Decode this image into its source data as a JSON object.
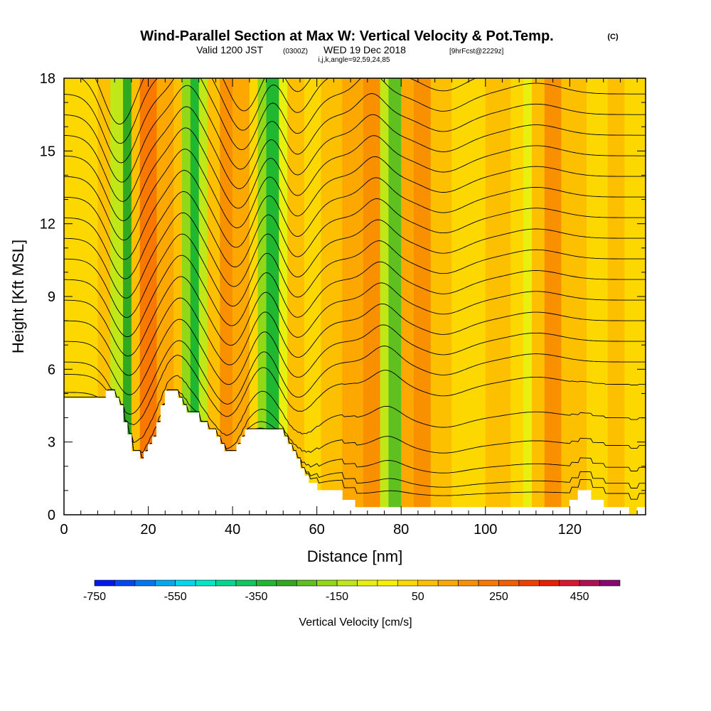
{
  "chart_data": {
    "type": "heatmap",
    "title": "Wind-Parallel Section at Max W: Vertical Velocity & Pot.Temp.",
    "title_mark": "(C)",
    "subtitle": {
      "prefix": "Valid 1200 JST",
      "zulu": "(0300Z)",
      "date": "WED 19 Dec 2018",
      "forecast": "[9hrFcst@2229z]"
    },
    "section_info": "i,j,k,angle=92,59,24,85",
    "xlabel": "Distance [nm]",
    "ylabel": "Height [Kft MSL]",
    "xlim": [
      0,
      138
    ],
    "ylim": [
      0,
      18
    ],
    "x_ticks": [
      0,
      20,
      40,
      60,
      80,
      100,
      120
    ],
    "y_ticks": [
      0,
      3,
      6,
      9,
      12,
      15,
      18
    ],
    "terrain": {
      "x": [
        0,
        10,
        10,
        12,
        12,
        13,
        13,
        14,
        14,
        15,
        15,
        16,
        16,
        17,
        17,
        18,
        18,
        19,
        19,
        20,
        20,
        21,
        21,
        22,
        22,
        23,
        23,
        24,
        24,
        25,
        25,
        26,
        26,
        27,
        27,
        28,
        28,
        29,
        29,
        30,
        30,
        31,
        31,
        32,
        32,
        33,
        33,
        34,
        34,
        35,
        35,
        36,
        36,
        37,
        37,
        38,
        38,
        39,
        39,
        40,
        40,
        41,
        41,
        42,
        42,
        43,
        43,
        44,
        44,
        45,
        45,
        46,
        46,
        47,
        47,
        48,
        48,
        49,
        49,
        50,
        50,
        51,
        51,
        52,
        52,
        53,
        53,
        54,
        54,
        55,
        55,
        56,
        56,
        57,
        57,
        58,
        58,
        59,
        59,
        60,
        60,
        63,
        63,
        66,
        66,
        67,
        67,
        69,
        69,
        70,
        70,
        71,
        71,
        72,
        72,
        73,
        73,
        74,
        74,
        75,
        75,
        110,
        110,
        118,
        118,
        120,
        120,
        122,
        122,
        124,
        124,
        125,
        125,
        126,
        126,
        127,
        127,
        128,
        128,
        130,
        130,
        132,
        132,
        134,
        134,
        136,
        136,
        138
      ],
      "y": [
        4.8,
        4.8,
        5.1,
        5.1,
        4.8,
        4.8,
        4.5,
        4.5,
        3.8,
        3.8,
        3.3,
        3.3,
        2.6,
        2.6,
        2.6,
        2.6,
        2.3,
        2.3,
        2.6,
        2.6,
        2.9,
        2.9,
        3.2,
        3.2,
        3.8,
        3.8,
        4.5,
        4.5,
        5.1,
        5.1,
        5.1,
        5.1,
        5.1,
        5.1,
        4.8,
        4.8,
        4.5,
        4.5,
        4.2,
        4.2,
        4.2,
        4.2,
        4.2,
        4.2,
        3.8,
        3.8,
        3.8,
        3.8,
        3.5,
        3.5,
        3.5,
        3.5,
        3.2,
        3.2,
        2.9,
        2.9,
        2.6,
        2.6,
        2.6,
        2.6,
        2.6,
        2.6,
        2.9,
        2.9,
        3.2,
        3.2,
        3.5,
        3.5,
        3.5,
        3.5,
        3.5,
        3.5,
        3.5,
        3.5,
        3.5,
        3.5,
        3.5,
        3.5,
        3.5,
        3.5,
        3.5,
        3.5,
        3.5,
        3.5,
        3.2,
        3.2,
        2.9,
        2.9,
        2.6,
        2.6,
        2.3,
        2.3,
        1.9,
        1.9,
        1.6,
        1.6,
        1.3,
        1.3,
        1.3,
        1.3,
        1.0,
        1.0,
        1.0,
        1.0,
        0.6,
        0.6,
        0.6,
        0.6,
        0.3,
        0.3,
        0.3,
        0.3,
        0.3,
        0.3,
        0.3,
        0.3,
        0.3,
        0.3,
        0.3,
        0.3,
        0.3,
        0.3,
        0.3,
        0.3,
        0.3,
        0.3,
        0.6,
        0.6,
        1.0,
        1.0,
        1.0,
        1.0,
        0.6,
        0.6,
        0.6,
        0.6,
        0.6,
        0.6,
        0.3,
        0.3,
        0.3,
        0.3,
        0.3,
        0.3,
        0.0,
        0.0,
        0.3,
        0.3
      ]
    },
    "vertical_velocity_bands": [
      {
        "x0": 0,
        "x1": 8,
        "w": 30
      },
      {
        "x0": 8,
        "x1": 11,
        "w": 80
      },
      {
        "x0": 11,
        "x1": 14,
        "w": -120
      },
      {
        "x0": 14,
        "x1": 16,
        "w": -280
      },
      {
        "x0": 16,
        "x1": 18,
        "w": 50
      },
      {
        "x0": 18,
        "x1": 22,
        "w": 200
      },
      {
        "x0": 22,
        "x1": 26,
        "w": 120
      },
      {
        "x0": 26,
        "x1": 28,
        "w": 50
      },
      {
        "x0": 28,
        "x1": 30,
        "w": -200
      },
      {
        "x0": 30,
        "x1": 32,
        "w": -330
      },
      {
        "x0": 32,
        "x1": 34,
        "w": -150
      },
      {
        "x0": 34,
        "x1": 37,
        "w": 80
      },
      {
        "x0": 37,
        "x1": 40,
        "w": 180
      },
      {
        "x0": 40,
        "x1": 44,
        "w": 130
      },
      {
        "x0": 44,
        "x1": 46,
        "w": 40
      },
      {
        "x0": 46,
        "x1": 48,
        "w": -180
      },
      {
        "x0": 48,
        "x1": 51,
        "w": -330
      },
      {
        "x0": 51,
        "x1": 53,
        "w": -100
      },
      {
        "x0": 53,
        "x1": 57,
        "w": 70
      },
      {
        "x0": 57,
        "x1": 61,
        "w": 30
      },
      {
        "x0": 61,
        "x1": 66,
        "w": 60
      },
      {
        "x0": 66,
        "x1": 71,
        "w": 120
      },
      {
        "x0": 71,
        "x1": 75,
        "w": 180
      },
      {
        "x0": 75,
        "x1": 77,
        "w": -150
      },
      {
        "x0": 77,
        "x1": 80,
        "w": -250
      },
      {
        "x0": 80,
        "x1": 83,
        "w": 100
      },
      {
        "x0": 83,
        "x1": 87,
        "w": 150
      },
      {
        "x0": 87,
        "x1": 92,
        "w": 60
      },
      {
        "x0": 92,
        "x1": 100,
        "w": 30
      },
      {
        "x0": 100,
        "x1": 106,
        "w": 60
      },
      {
        "x0": 106,
        "x1": 109,
        "w": 0
      },
      {
        "x0": 109,
        "x1": 111,
        "w": -70
      },
      {
        "x0": 111,
        "x1": 114,
        "w": 80
      },
      {
        "x0": 114,
        "x1": 118,
        "w": 150
      },
      {
        "x0": 118,
        "x1": 124,
        "w": 90
      },
      {
        "x0": 124,
        "x1": 129,
        "w": 40
      },
      {
        "x0": 129,
        "x1": 133,
        "w": 80
      },
      {
        "x0": 133,
        "x1": 138,
        "w": 40
      }
    ],
    "colorbar": {
      "levels": [
        -750,
        -700,
        -650,
        -600,
        -550,
        -500,
        -450,
        -400,
        -350,
        -300,
        -250,
        -200,
        -150,
        -100,
        -50,
        0,
        50,
        100,
        150,
        200,
        250,
        300,
        350,
        400,
        450,
        500,
        550
      ],
      "colors": [
        "#0018f0",
        "#0048f0",
        "#0078f0",
        "#00a8f0",
        "#00d8f0",
        "#00e8c8",
        "#00d890",
        "#10c860",
        "#20b830",
        "#30a820",
        "#60c020",
        "#90d818",
        "#c0e818",
        "#e8f010",
        "#f8f000",
        "#fcd800",
        "#fcc000",
        "#fca800",
        "#f89000",
        "#f87800",
        "#f06000",
        "#f04000",
        "#e82000",
        "#d81830",
        "#b01050",
        "#880870"
      ],
      "tick_labels": [
        "-750",
        "-550",
        "-350",
        "-150",
        "50",
        "250",
        "450"
      ],
      "tick_values": [
        -750,
        -550,
        -350,
        -150,
        50,
        250,
        450
      ],
      "title": "Vertical Velocity [cm/s]"
    },
    "theta_contours": {
      "min": -3,
      "max": 58,
      "step": 3,
      "color": "#000000"
    }
  }
}
